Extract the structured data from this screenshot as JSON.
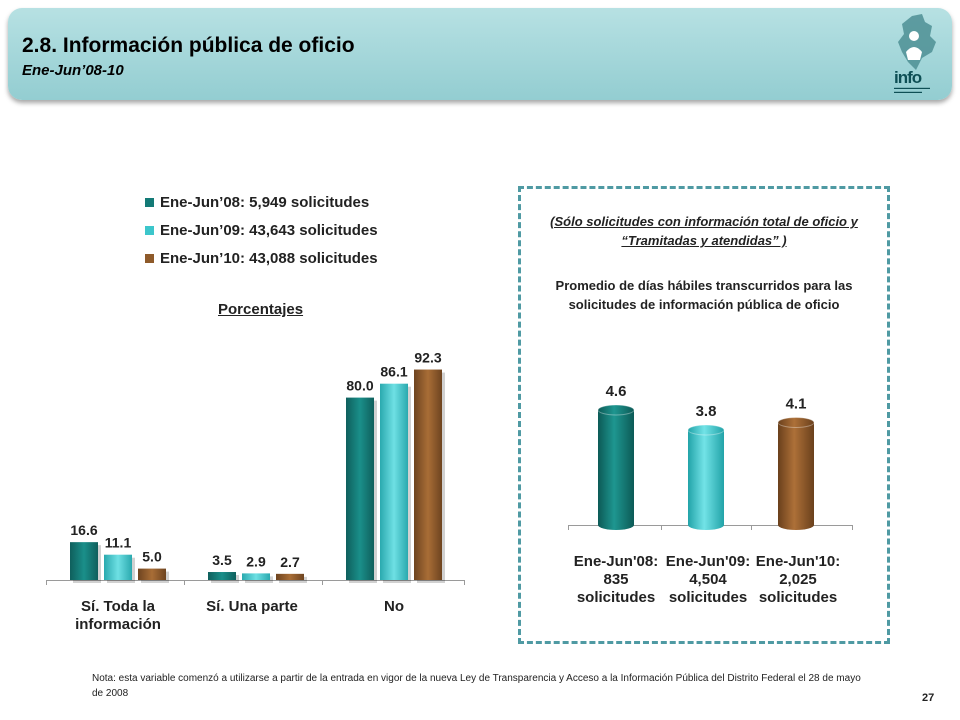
{
  "header": {
    "title": "2.8. Información pública de oficio",
    "subtitle": "Ene-Jun’08-10",
    "logo_text": "info"
  },
  "colors": {
    "series_2008": "#137a76",
    "series_2009": "#3cc6cb",
    "series_2010": "#8e5a2a",
    "header_bg": "#a6d8db",
    "box_border": "#4f9aa3"
  },
  "legend": [
    {
      "label": "Ene-Jun’08: 5,949 solicitudes"
    },
    {
      "label": "Ene-Jun’09: 43,643 solicitudes"
    },
    {
      "label": "Ene-Jun’10: 43,088 solicitudes"
    }
  ],
  "percent_label": "Porcentajes",
  "chart_data": [
    {
      "type": "bar",
      "categories": [
        "Sí. Toda la información",
        "Sí. Una parte",
        "No"
      ],
      "series": [
        {
          "name": "Ene-Jun’08: 5,949 solicitudes",
          "values": [
            16.6,
            3.5,
            80.0
          ]
        },
        {
          "name": "Ene-Jun’09: 43,643 solicitudes",
          "values": [
            11.1,
            2.9,
            86.1
          ]
        },
        {
          "name": "Ene-Jun’10: 43,088 solicitudes",
          "values": [
            5.0,
            2.7,
            92.3
          ]
        }
      ],
      "data_labels": [
        [
          "16.6",
          "3.5",
          "80.0"
        ],
        [
          "11.1",
          "2.9",
          "86.1"
        ],
        [
          "5.0",
          "2.7",
          "92.3"
        ]
      ],
      "ylim": [
        0,
        100
      ],
      "legend": "top",
      "grid": false
    },
    {
      "type": "bar",
      "categories": [
        "Ene-Jun'08: 835 solicitudes",
        "Ene-Jun'09: 4,504 solicitudes",
        "Ene-Jun'10: 2,025 solicitudes"
      ],
      "values": [
        4.6,
        3.8,
        4.1
      ],
      "data_labels": [
        "4.6",
        "3.8",
        "4.1"
      ],
      "ylim": [
        0,
        5
      ],
      "grid": false
    }
  ],
  "left_categories": [
    {
      "line1": "Sí. Toda la",
      "line2": "información"
    },
    {
      "line1": "Sí. Una parte",
      "line2": ""
    },
    {
      "line1": "No",
      "line2": ""
    }
  ],
  "right_panel": {
    "note": "(Sólo solicitudes con información total de oficio y “Tramitadas y atendidas” )",
    "description": "Promedio de días hábiles transcurridos para las solicitudes de información pública de oficio",
    "categories": [
      {
        "line1": "Ene-Jun'08:",
        "line2": "835",
        "line3": "solicitudes"
      },
      {
        "line1": "Ene-Jun'09:",
        "line2": "4,504",
        "line3": "solicitudes"
      },
      {
        "line1": "Ene-Jun'10:",
        "line2": "2,025",
        "line3": "solicitudes"
      }
    ]
  },
  "footnote": "Nota: esta variable comenzó a utilizarse a partir de la entrada en vigor de la nueva Ley de Transparencia y Acceso a la Información Pública del Distrito Federal el 28 de mayo de 2008",
  "page_number": "27"
}
